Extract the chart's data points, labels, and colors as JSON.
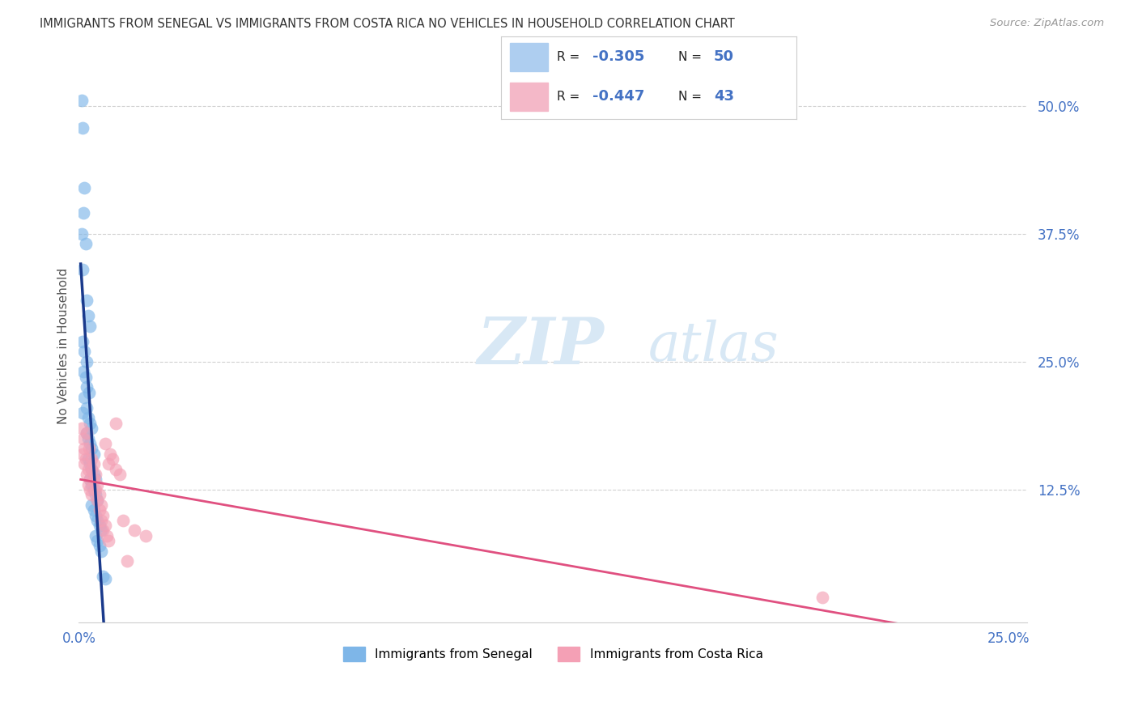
{
  "title": "IMMIGRANTS FROM SENEGAL VS IMMIGRANTS FROM COSTA RICA NO VEHICLES IN HOUSEHOLD CORRELATION CHART",
  "source": "Source: ZipAtlas.com",
  "ylabel": "No Vehicles in Household",
  "ytick_values": [
    0.125,
    0.25,
    0.375,
    0.5
  ],
  "ytick_labels": [
    "12.5%",
    "25.0%",
    "37.5%",
    "50.0%"
  ],
  "xlim": [
    0.0,
    0.255
  ],
  "ylim": [
    -0.005,
    0.535
  ],
  "senegal_R": -0.305,
  "senegal_N": 50,
  "costarica_R": -0.447,
  "costarica_N": 43,
  "blue_color": "#7EB6E8",
  "pink_color": "#F4A0B5",
  "blue_line_color": "#1A3A8C",
  "pink_line_color": "#E05080",
  "legend_blue_fill": "#AECEF0",
  "legend_pink_fill": "#F4B8C8",
  "title_color": "#333333",
  "source_color": "#999999",
  "label_color": "#4472C4",
  "watermark_color": "#D8E8F5",
  "senegal_x": [
    0.0008,
    0.001,
    0.0015,
    0.0012,
    0.0018,
    0.0008,
    0.001,
    0.002,
    0.0025,
    0.003,
    0.001,
    0.0015,
    0.002,
    0.0012,
    0.0018,
    0.0022,
    0.0028,
    0.0015,
    0.002,
    0.001,
    0.0025,
    0.003,
    0.0035,
    0.002,
    0.0025,
    0.003,
    0.0035,
    0.004,
    0.0025,
    0.003,
    0.0035,
    0.004,
    0.0045,
    0.003,
    0.0035,
    0.004,
    0.0045,
    0.005,
    0.0035,
    0.004,
    0.0045,
    0.005,
    0.0055,
    0.006,
    0.0045,
    0.005,
    0.0055,
    0.006,
    0.0065,
    0.007
  ],
  "senegal_y": [
    0.505,
    0.478,
    0.42,
    0.395,
    0.365,
    0.375,
    0.34,
    0.31,
    0.295,
    0.285,
    0.27,
    0.26,
    0.25,
    0.24,
    0.235,
    0.225,
    0.22,
    0.215,
    0.205,
    0.2,
    0.195,
    0.19,
    0.185,
    0.18,
    0.175,
    0.17,
    0.165,
    0.16,
    0.155,
    0.15,
    0.145,
    0.14,
    0.135,
    0.135,
    0.13,
    0.125,
    0.12,
    0.115,
    0.11,
    0.105,
    0.1,
    0.095,
    0.09,
    0.085,
    0.08,
    0.075,
    0.07,
    0.065,
    0.04,
    0.038
  ],
  "costarica_x": [
    0.0008,
    0.0012,
    0.0015,
    0.001,
    0.0018,
    0.002,
    0.0015,
    0.0025,
    0.002,
    0.003,
    0.0025,
    0.003,
    0.0035,
    0.0028,
    0.0035,
    0.004,
    0.0035,
    0.0045,
    0.004,
    0.005,
    0.0045,
    0.0055,
    0.005,
    0.006,
    0.0055,
    0.0065,
    0.006,
    0.007,
    0.0065,
    0.0075,
    0.008,
    0.007,
    0.0085,
    0.009,
    0.008,
    0.01,
    0.011,
    0.012,
    0.015,
    0.018,
    0.01,
    0.013,
    0.2
  ],
  "costarica_y": [
    0.185,
    0.175,
    0.165,
    0.16,
    0.155,
    0.18,
    0.15,
    0.145,
    0.14,
    0.135,
    0.13,
    0.125,
    0.12,
    0.165,
    0.155,
    0.15,
    0.145,
    0.14,
    0.135,
    0.13,
    0.125,
    0.12,
    0.115,
    0.11,
    0.105,
    0.1,
    0.095,
    0.09,
    0.085,
    0.08,
    0.075,
    0.17,
    0.16,
    0.155,
    0.15,
    0.145,
    0.14,
    0.095,
    0.085,
    0.08,
    0.19,
    0.055,
    0.02
  ]
}
